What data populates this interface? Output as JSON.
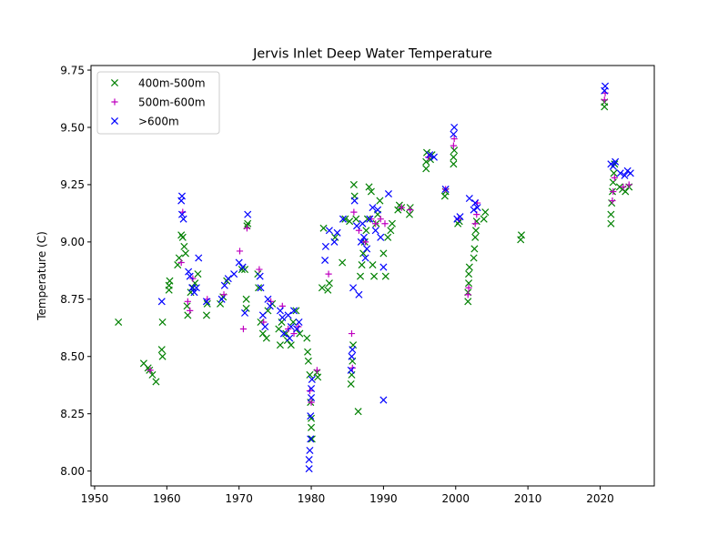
{
  "chart_data": {
    "type": "scatter",
    "title": "Jervis Inlet Deep Water Temperature",
    "xlabel": "",
    "ylabel": "Temperature (C)",
    "xlim": [
      1949.5,
      2027.5
    ],
    "ylim": [
      7.935,
      9.77
    ],
    "xticks": [
      1950,
      1960,
      1970,
      1980,
      1990,
      2000,
      2010,
      2020
    ],
    "yticks": [
      8.0,
      8.25,
      8.5,
      8.75,
      9.0,
      9.25,
      9.5,
      9.75
    ],
    "ytick_labels": [
      "8.00",
      "8.25",
      "8.50",
      "8.75",
      "9.00",
      "9.25",
      "9.50",
      "9.75"
    ],
    "grid": false,
    "legend": "top-left",
    "series": [
      {
        "name": "400m-500m",
        "marker": "x",
        "color": "#008000",
        "points": [
          [
            1953.3,
            8.65
          ],
          [
            1956.8,
            8.47
          ],
          [
            1957.4,
            8.45
          ],
          [
            1957.6,
            8.44
          ],
          [
            1958.0,
            8.42
          ],
          [
            1958.5,
            8.39
          ],
          [
            1959.3,
            8.53
          ],
          [
            1959.4,
            8.5
          ],
          [
            1959.4,
            8.65
          ],
          [
            1960.3,
            8.79
          ],
          [
            1960.3,
            8.81
          ],
          [
            1960.4,
            8.83
          ],
          [
            1961.5,
            8.9
          ],
          [
            1961.7,
            8.93
          ],
          [
            1962.0,
            9.03
          ],
          [
            1962.2,
            9.02
          ],
          [
            1962.4,
            8.98
          ],
          [
            1962.6,
            8.95
          ],
          [
            1962.8,
            8.72
          ],
          [
            1962.9,
            8.68
          ],
          [
            1963.3,
            8.78
          ],
          [
            1963.6,
            8.8
          ],
          [
            1963.9,
            8.82
          ],
          [
            1964.3,
            8.86
          ],
          [
            1965.5,
            8.68
          ],
          [
            1965.6,
            8.73
          ],
          [
            1967.4,
            8.73
          ],
          [
            1967.8,
            8.76
          ],
          [
            1968.3,
            8.83
          ],
          [
            1970.4,
            8.88
          ],
          [
            1970.8,
            8.88
          ],
          [
            1971.0,
            8.75
          ],
          [
            1971.0,
            8.71
          ],
          [
            1971.2,
            9.08
          ],
          [
            1971.1,
            9.07
          ],
          [
            1972.6,
            8.86
          ],
          [
            1972.7,
            8.8
          ],
          [
            1973.0,
            8.65
          ],
          [
            1973.3,
            8.6
          ],
          [
            1973.8,
            8.58
          ],
          [
            1974.0,
            8.7
          ],
          [
            1974.6,
            8.73
          ],
          [
            1975.5,
            8.62
          ],
          [
            1975.7,
            8.55
          ],
          [
            1975.9,
            8.65
          ],
          [
            1976.5,
            8.6
          ],
          [
            1976.7,
            8.57
          ],
          [
            1977.2,
            8.55
          ],
          [
            1977.5,
            8.65
          ],
          [
            1977.9,
            8.7
          ],
          [
            1978.4,
            8.6
          ],
          [
            1979.4,
            8.58
          ],
          [
            1979.5,
            8.52
          ],
          [
            1979.6,
            8.48
          ],
          [
            1979.8,
            8.42
          ],
          [
            1979.9,
            8.3
          ],
          [
            1980.0,
            8.23
          ],
          [
            1980.0,
            8.19
          ],
          [
            1980.1,
            8.14
          ],
          [
            1980.8,
            8.43
          ],
          [
            1980.9,
            8.41
          ],
          [
            1981.5,
            8.8
          ],
          [
            1981.7,
            9.06
          ],
          [
            1982.3,
            8.79
          ],
          [
            1982.5,
            8.82
          ],
          [
            1983.3,
            9.02
          ],
          [
            1984.3,
            8.91
          ],
          [
            1984.7,
            9.1
          ],
          [
            1985.3,
            9.09
          ],
          [
            1985.5,
            8.38
          ],
          [
            1985.6,
            8.42
          ],
          [
            1985.7,
            8.48
          ],
          [
            1985.8,
            8.55
          ],
          [
            1985.9,
            9.25
          ],
          [
            1986.0,
            9.2
          ],
          [
            1986.2,
            9.1
          ],
          [
            1986.5,
            8.26
          ],
          [
            1986.8,
            8.85
          ],
          [
            1987.0,
            8.9
          ],
          [
            1987.2,
            8.95
          ],
          [
            1987.4,
            9.0
          ],
          [
            1987.6,
            9.05
          ],
          [
            1987.8,
            9.1
          ],
          [
            1988.0,
            9.24
          ],
          [
            1988.3,
            9.22
          ],
          [
            1988.5,
            8.9
          ],
          [
            1988.7,
            8.85
          ],
          [
            1989.0,
            9.08
          ],
          [
            1989.2,
            9.12
          ],
          [
            1989.5,
            9.18
          ],
          [
            1990.0,
            8.95
          ],
          [
            1990.3,
            8.85
          ],
          [
            1990.6,
            9.02
          ],
          [
            1991.0,
            9.05
          ],
          [
            1991.2,
            9.08
          ],
          [
            1992.0,
            9.14
          ],
          [
            1992.2,
            9.16
          ],
          [
            1992.5,
            9.15
          ],
          [
            1993.6,
            9.12
          ],
          [
            1993.7,
            9.15
          ],
          [
            1995.9,
            9.32
          ],
          [
            1995.9,
            9.35
          ],
          [
            1996.0,
            9.39
          ],
          [
            1996.5,
            9.36
          ],
          [
            1996.7,
            9.38
          ],
          [
            1998.5,
            9.2
          ],
          [
            1998.6,
            9.22
          ],
          [
            1999.7,
            9.34
          ],
          [
            1999.7,
            9.37
          ],
          [
            1999.8,
            9.4
          ],
          [
            2000.3,
            9.08
          ],
          [
            2000.5,
            9.09
          ],
          [
            2001.7,
            8.74
          ],
          [
            2001.7,
            8.78
          ],
          [
            2001.8,
            8.82
          ],
          [
            2001.8,
            8.86
          ],
          [
            2001.9,
            8.89
          ],
          [
            2002.5,
            8.93
          ],
          [
            2002.6,
            8.97
          ],
          [
            2002.7,
            9.02
          ],
          [
            2002.8,
            9.05
          ],
          [
            2002.9,
            9.09
          ],
          [
            2003.9,
            9.1
          ],
          [
            2004.1,
            9.13
          ],
          [
            2009.0,
            9.01
          ],
          [
            2009.1,
            9.03
          ],
          [
            2020.6,
            9.59
          ],
          [
            2020.6,
            9.61
          ],
          [
            2021.5,
            9.08
          ],
          [
            2021.5,
            9.12
          ],
          [
            2021.6,
            9.17
          ],
          [
            2021.7,
            9.22
          ],
          [
            2021.8,
            9.26
          ],
          [
            2021.9,
            9.3
          ],
          [
            2022.0,
            9.34
          ],
          [
            2022.7,
            9.24
          ],
          [
            2023.1,
            9.23
          ],
          [
            2023.5,
            9.22
          ],
          [
            2024.0,
            9.24
          ]
        ]
      },
      {
        "name": "500m-600m",
        "marker": "+",
        "color": "#bf00bf",
        "points": [
          [
            1957.7,
            8.44
          ],
          [
            1962.0,
            8.91
          ],
          [
            1962.2,
            9.13
          ],
          [
            1962.9,
            8.74
          ],
          [
            1963.2,
            8.7
          ],
          [
            1963.6,
            8.84
          ],
          [
            1965.6,
            8.75
          ],
          [
            1967.9,
            8.77
          ],
          [
            1970.1,
            8.96
          ],
          [
            1970.6,
            8.62
          ],
          [
            1971.1,
            9.06
          ],
          [
            1972.8,
            8.88
          ],
          [
            1973.4,
            8.65
          ],
          [
            1974.4,
            8.74
          ],
          [
            1976.0,
            8.72
          ],
          [
            1976.8,
            8.62
          ],
          [
            1977.6,
            8.6
          ],
          [
            1978.2,
            8.63
          ],
          [
            1979.8,
            8.35
          ],
          [
            1980.0,
            8.3
          ],
          [
            1980.8,
            8.44
          ],
          [
            1982.4,
            8.86
          ],
          [
            1985.6,
            8.6
          ],
          [
            1985.7,
            8.45
          ],
          [
            1985.9,
            9.13
          ],
          [
            1986.6,
            9.05
          ],
          [
            1987.5,
            9.0
          ],
          [
            1988.3,
            9.1
          ],
          [
            1988.9,
            9.08
          ],
          [
            1989.6,
            9.1
          ],
          [
            1990.2,
            9.08
          ],
          [
            1992.5,
            9.15
          ],
          [
            1993.7,
            9.14
          ],
          [
            1996.2,
            9.37
          ],
          [
            1998.6,
            9.23
          ],
          [
            1999.7,
            9.42
          ],
          [
            1999.8,
            9.45
          ],
          [
            2000.4,
            9.1
          ],
          [
            2001.7,
            8.77
          ],
          [
            2001.8,
            8.8
          ],
          [
            2002.7,
            9.08
          ],
          [
            2002.9,
            9.12
          ],
          [
            2003.0,
            9.17
          ],
          [
            2020.6,
            9.62
          ],
          [
            2020.7,
            9.65
          ],
          [
            2021.7,
            9.18
          ],
          [
            2021.8,
            9.22
          ],
          [
            2022.0,
            9.28
          ],
          [
            2023.2,
            9.24
          ],
          [
            2024.0,
            9.25
          ]
        ]
      },
      {
        "name": ">600m",
        "marker": "x",
        "color": "#0000ff",
        "points": [
          [
            1959.3,
            8.74
          ],
          [
            1962.0,
            9.18
          ],
          [
            1962.1,
            9.2
          ],
          [
            1962.1,
            9.12
          ],
          [
            1962.3,
            9.1
          ],
          [
            1963.0,
            8.87
          ],
          [
            1963.2,
            8.85
          ],
          [
            1963.5,
            8.8
          ],
          [
            1963.8,
            8.78
          ],
          [
            1964.1,
            8.8
          ],
          [
            1964.4,
            8.93
          ],
          [
            1965.5,
            8.74
          ],
          [
            1967.6,
            8.75
          ],
          [
            1968.0,
            8.81
          ],
          [
            1968.5,
            8.84
          ],
          [
            1969.3,
            8.86
          ],
          [
            1970.0,
            8.91
          ],
          [
            1970.5,
            8.89
          ],
          [
            1970.8,
            8.69
          ],
          [
            1971.2,
            9.12
          ],
          [
            1972.9,
            8.85
          ],
          [
            1973.0,
            8.8
          ],
          [
            1973.3,
            8.68
          ],
          [
            1973.6,
            8.63
          ],
          [
            1974.0,
            8.75
          ],
          [
            1974.3,
            8.72
          ],
          [
            1975.7,
            8.7
          ],
          [
            1976.0,
            8.67
          ],
          [
            1976.2,
            8.6
          ],
          [
            1976.8,
            8.68
          ],
          [
            1977.0,
            8.58
          ],
          [
            1977.2,
            8.63
          ],
          [
            1977.6,
            8.7
          ],
          [
            1978.0,
            8.62
          ],
          [
            1978.3,
            8.65
          ],
          [
            1979.7,
            8.01
          ],
          [
            1979.7,
            8.05
          ],
          [
            1979.8,
            8.09
          ],
          [
            1979.9,
            8.14
          ],
          [
            1979.9,
            8.24
          ],
          [
            1980.0,
            8.32
          ],
          [
            1980.0,
            8.36
          ],
          [
            1980.1,
            8.4
          ],
          [
            1981.9,
            8.92
          ],
          [
            1982.0,
            8.98
          ],
          [
            1982.5,
            9.05
          ],
          [
            1983.2,
            9.0
          ],
          [
            1983.6,
            9.04
          ],
          [
            1984.4,
            9.1
          ],
          [
            1985.5,
            8.44
          ],
          [
            1985.6,
            8.5
          ],
          [
            1985.7,
            8.53
          ],
          [
            1985.8,
            8.8
          ],
          [
            1986.0,
            9.18
          ],
          [
            1986.3,
            9.07
          ],
          [
            1986.6,
            8.77
          ],
          [
            1986.9,
            9.0
          ],
          [
            1987.1,
            9.08
          ],
          [
            1987.3,
            9.02
          ],
          [
            1987.5,
            8.93
          ],
          [
            1987.7,
            8.97
          ],
          [
            1988.1,
            9.1
          ],
          [
            1988.5,
            9.15
          ],
          [
            1988.9,
            9.05
          ],
          [
            1989.2,
            9.14
          ],
          [
            1989.6,
            9.02
          ],
          [
            1990.0,
            8.89
          ],
          [
            1990.0,
            8.31
          ],
          [
            1990.7,
            9.21
          ],
          [
            1996.4,
            9.38
          ],
          [
            1997.0,
            9.37
          ],
          [
            1998.6,
            9.23
          ],
          [
            1999.7,
            9.47
          ],
          [
            1999.8,
            9.5
          ],
          [
            2000.2,
            9.1
          ],
          [
            2000.6,
            9.11
          ],
          [
            2001.9,
            9.19
          ],
          [
            2002.5,
            9.14
          ],
          [
            2002.7,
            9.17
          ],
          [
            2003.0,
            9.15
          ],
          [
            2020.6,
            9.66
          ],
          [
            2020.7,
            9.68
          ],
          [
            2021.5,
            9.34
          ],
          [
            2021.8,
            9.33
          ],
          [
            2022.1,
            9.35
          ],
          [
            2022.8,
            9.3
          ],
          [
            2023.4,
            9.29
          ],
          [
            2023.8,
            9.31
          ],
          [
            2024.2,
            9.3
          ]
        ]
      }
    ]
  }
}
